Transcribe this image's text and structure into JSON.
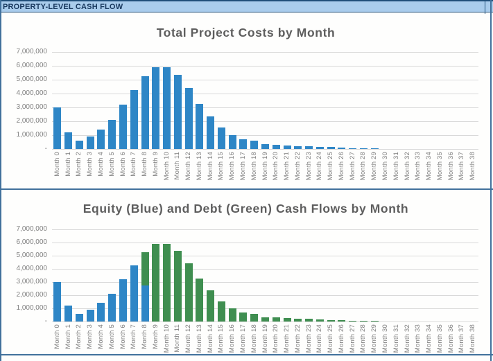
{
  "header": {
    "title": "PROPERTY-LEVEL CASH FLOW"
  },
  "colors": {
    "equity_blue": "#2e86c6",
    "debt_green": "#3f8e50",
    "gridline": "#d9d9d9",
    "axis_text": "#7f7f7f",
    "title_text": "#5e5e5e",
    "sheet_border_blue": "#41719c",
    "header_bg": "#a9ccec",
    "header_text": "#17375d",
    "header_border": "#1f4e79"
  },
  "chart_data": [
    {
      "type": "bar",
      "title": "Total Project Costs by Month",
      "xlabel": "",
      "ylabel": "",
      "ylim": [
        0,
        7000000
      ],
      "ytick_interval": 1000000,
      "ytick_labels_top_to_bottom": [
        "7,000,000",
        "6,000,000",
        "5,000,000",
        "4,000,000",
        "3,000,000",
        "2,000,000",
        "1,000,000",
        "-"
      ],
      "grid": "horizontal",
      "legend": "none",
      "x_label_rotation_deg": 90,
      "categories": [
        "Month 0",
        "Month 1",
        "Month 2",
        "Month 3",
        "Month 4",
        "Month 5",
        "Month 6",
        "Month 7",
        "Month 8",
        "Month 9",
        "Month 10",
        "Month 11",
        "Month 12",
        "Month 13",
        "Month 14",
        "Month 15",
        "Month 16",
        "Month 17",
        "Month 18",
        "Month 19",
        "Month 20",
        "Month 21",
        "Month 22",
        "Month 23",
        "Month 24",
        "Month 25",
        "Month 26",
        "Month 27",
        "Month 28",
        "Month 29",
        "Month 30",
        "Month 31",
        "Month 32",
        "Month 33",
        "Month 34",
        "Month 35",
        "Month 36",
        "Month 37",
        "Month 38"
      ],
      "series": [
        {
          "name": "total-project-costs",
          "color": "#2e86c6",
          "values": [
            3000000,
            1200000,
            600000,
            900000,
            1400000,
            2100000,
            3200000,
            4250000,
            5250000,
            5900000,
            5900000,
            5350000,
            4400000,
            3250000,
            2350000,
            1550000,
            1000000,
            700000,
            580000,
            330000,
            300000,
            250000,
            220000,
            220000,
            170000,
            130000,
            80000,
            50000,
            40000,
            30000,
            0,
            0,
            0,
            0,
            0,
            0,
            0,
            0,
            0
          ]
        }
      ]
    },
    {
      "type": "stacked-bar",
      "title": "Equity (Blue) and Debt (Green) Cash Flows by Month",
      "xlabel": "",
      "ylabel": "",
      "ylim": [
        0,
        7000000
      ],
      "ytick_interval": 1000000,
      "ytick_labels_top_to_bottom": [
        "7,000,000",
        "6,000,000",
        "5,000,000",
        "4,000,000",
        "3,000,000",
        "2,000,000",
        "1,000,000",
        "-"
      ],
      "grid": "horizontal",
      "legend": "none",
      "x_label_rotation_deg": 90,
      "categories": [
        "Month 0",
        "Month 1",
        "Month 2",
        "Month 3",
        "Month 4",
        "Month 5",
        "Month 6",
        "Month 7",
        "Month 8",
        "Month 9",
        "Month 10",
        "Month 11",
        "Month 12",
        "Month 13",
        "Month 14",
        "Month 15",
        "Month 16",
        "Month 17",
        "Month 18",
        "Month 19",
        "Month 20",
        "Month 21",
        "Month 22",
        "Month 23",
        "Month 24",
        "Month 25",
        "Month 26",
        "Month 27",
        "Month 28",
        "Month 29",
        "Month 30",
        "Month 31",
        "Month 32",
        "Month 33",
        "Month 34",
        "Month 35",
        "Month 36",
        "Month 37",
        "Month 38"
      ],
      "series": [
        {
          "name": "equity",
          "color": "#2e86c6",
          "values": [
            3000000,
            1200000,
            600000,
            900000,
            1400000,
            2100000,
            3200000,
            4250000,
            2750000,
            0,
            0,
            0,
            0,
            0,
            0,
            0,
            0,
            0,
            0,
            0,
            0,
            0,
            0,
            0,
            0,
            0,
            0,
            0,
            0,
            0,
            0,
            0,
            0,
            0,
            0,
            0,
            0,
            0,
            0
          ]
        },
        {
          "name": "debt",
          "color": "#3f8e50",
          "values": [
            0,
            0,
            0,
            0,
            0,
            0,
            0,
            0,
            2500000,
            5900000,
            5900000,
            5350000,
            4400000,
            3250000,
            2350000,
            1550000,
            1000000,
            700000,
            580000,
            330000,
            300000,
            250000,
            220000,
            220000,
            170000,
            130000,
            80000,
            50000,
            40000,
            30000,
            0,
            0,
            0,
            0,
            0,
            0,
            0,
            0,
            0
          ]
        }
      ]
    }
  ]
}
